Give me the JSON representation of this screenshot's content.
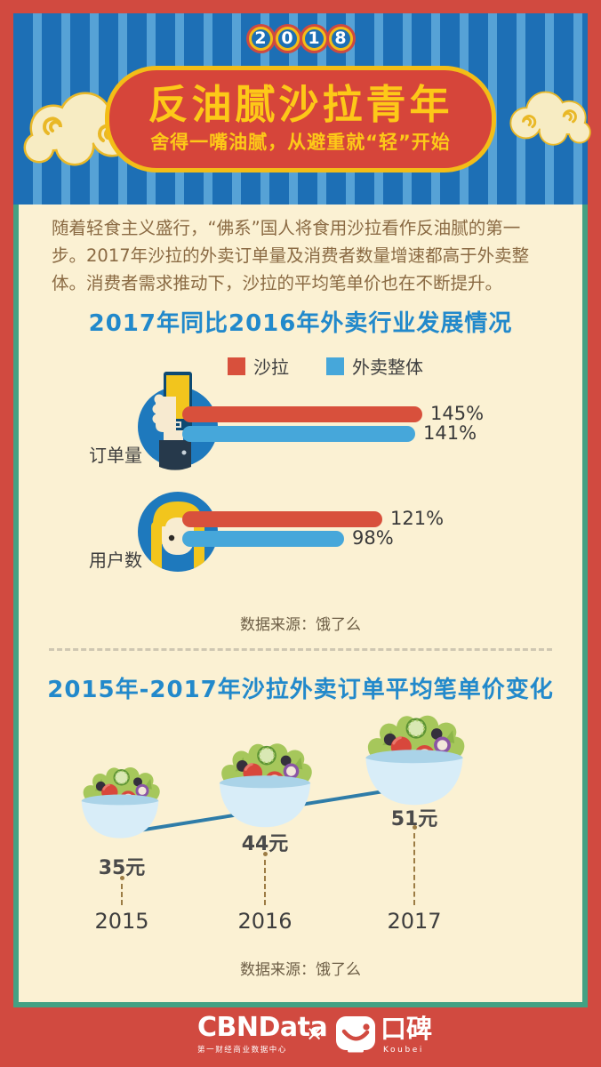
{
  "header": {
    "year_digits": [
      "2",
      "0",
      "1",
      "8"
    ],
    "title": "反油腻沙拉青年",
    "subtitle": "舍得一嘴油腻，从避重就“轻”开始"
  },
  "intro": "随着轻食主义盛行，“佛系”国人将食用沙拉看作反油腻的第一步。2017年沙拉的外卖订单量及消费者数量增速都高于外卖整体。消费者需求推动下，沙拉的平均笔单价也在不断提升。",
  "chart_data": [
    {
      "type": "bar",
      "orientation": "horizontal",
      "title": "2017年同比2016年外卖行业发展情况",
      "categories": [
        "订单量",
        "用户数"
      ],
      "series": [
        {
          "name": "沙拉",
          "color": "#d8503c",
          "values": [
            145,
            121
          ]
        },
        {
          "name": "外卖整体",
          "color": "#46a7da",
          "values": [
            141,
            98
          ]
        }
      ],
      "unit": "%",
      "legend_position": "top",
      "source": "数据来源：饿了么"
    },
    {
      "type": "line",
      "title": "2015年-2017年沙拉外卖订单平均笔单价变化",
      "x": [
        "2015",
        "2016",
        "2017"
      ],
      "values": [
        35,
        44,
        51
      ],
      "unit": "元",
      "source": "数据来源：饿了么"
    }
  ],
  "footer": {
    "cbn_logo": "CBNData",
    "cbn_sub": "第一财经商业数据中心",
    "separator": "×",
    "koubei_logo": "口碑",
    "koubei_sub": "Koubei"
  },
  "colors": {
    "frame_red": "#d14a40",
    "panel_cream": "#fbf1d3",
    "panel_border_green": "#43a183",
    "curtain_blue": "#1d6fb5",
    "curtain_stripe": "#56a2d6",
    "gold": "#f3bd17",
    "title_yellow": "#fdc918",
    "chart_title_blue": "#2289cb",
    "bar_red": "#d8503c",
    "bar_blue": "#46a7da",
    "body_text_brown": "#8a6a43"
  }
}
